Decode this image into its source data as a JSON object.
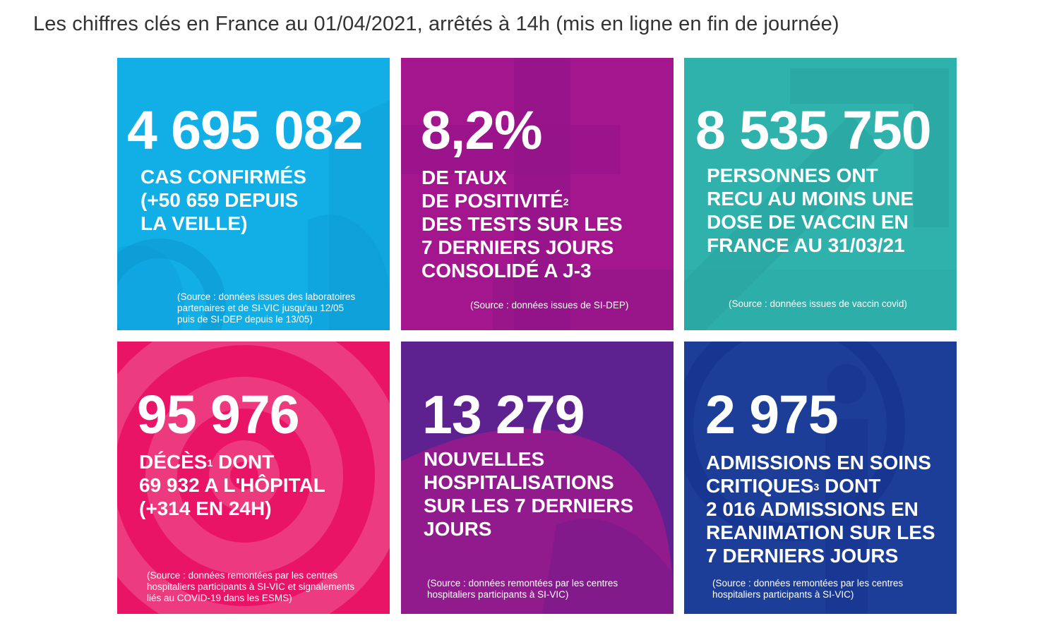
{
  "page": {
    "title": "Les chiffres clés en France au 01/04/2021, arrêtés à 14h (mis en ligne en fin de journée)"
  },
  "colors": {
    "tile_cases": "#12aee6",
    "tile_positivity": "#a4168e",
    "tile_vaccine": "#30b2ac",
    "tile_deaths": "#ea1467",
    "tile_hospital": "#5e2290",
    "tile_critical": "#1c3e99"
  },
  "tiles": {
    "cases": {
      "value": "4 695 082",
      "line1": "CAS CONFIRMÉS",
      "line2": "(+50 659 DEPUIS",
      "line3": "LA VEILLE)",
      "source1": "(Source : données issues des laboratoires",
      "source2": "partenaires et de SI-VIC jusqu'au 12/05",
      "source3": "puis de SI-DEP depuis le 13/05)"
    },
    "positivity": {
      "value": "8,2%",
      "line1": "DE TAUX",
      "line2": "DE POSITIVITÉ",
      "line2_sup": "2",
      "line3": "DES TESTS SUR LES",
      "line4": "7 DERNIERS JOURS",
      "line5": "CONSOLIDÉ A J-3",
      "source1": "(Source : données issues de SI-DEP)"
    },
    "vaccine": {
      "value": "8 535 750",
      "line1": "PERSONNES ONT",
      "line2": "RECU AU MOINS UNE",
      "line3": "DOSE DE VACCIN EN",
      "line4": "FRANCE AU 31/03/21",
      "source1": "(Source : données issues de vaccin covid)"
    },
    "deaths": {
      "value": "95 976",
      "line1": "DÉCÈS",
      "line1_sup": "1",
      "line1_suffix": " DONT",
      "line2": "69 932 A L'HÔPITAL",
      "line3": "(+314 EN 24H)",
      "source1": "(Source : données remontées par les centres",
      "source2": "hospitaliers participants à SI-VIC et signalements",
      "source3": "liés au COVID-19 dans les ESMS)"
    },
    "hospital": {
      "value": "13 279",
      "line1": "NOUVELLES",
      "line2": "HOSPITALISATIONS",
      "line3": "SUR LES 7 DERNIERS",
      "line4": "JOURS",
      "source1": "(Source : données remontées par les centres",
      "source2": "hospitaliers participants à SI-VIC)"
    },
    "critical": {
      "value": "2 975",
      "line1": "ADMISSIONS EN SOINS",
      "line2": "CRITIQUES",
      "line2_sup": "3",
      "line2_suffix": " DONT",
      "line3": "2 016 ADMISSIONS EN",
      "line4": "REANIMATION SUR LES",
      "line5": "7 DERNIERS JOURS",
      "source1": "(Source : données remontées par les centres",
      "source2": "hospitaliers participants à SI-VIC)"
    }
  }
}
